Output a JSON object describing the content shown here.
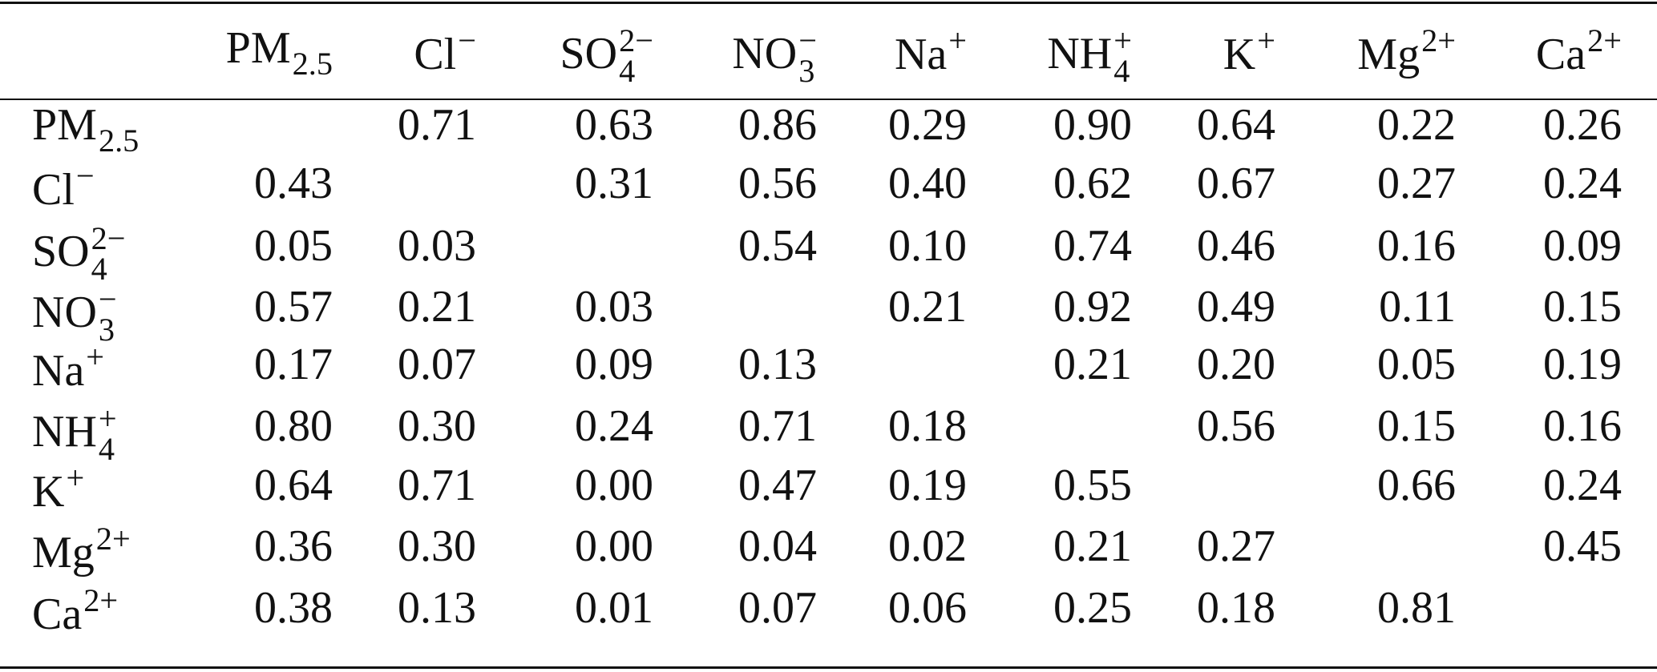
{
  "table": {
    "columns": [
      {
        "base": "PM",
        "sub": "2.5"
      },
      {
        "base": "Cl",
        "sup": "−"
      },
      {
        "base": "SO",
        "sub": "4",
        "sup": "2−"
      },
      {
        "base": "NO",
        "sub": "3",
        "sup": "−"
      },
      {
        "base": "Na",
        "sup": "+"
      },
      {
        "base": "NH",
        "sub": "4",
        "sup": "+"
      },
      {
        "base": "K",
        "sup": "+"
      },
      {
        "base": "Mg",
        "sup": "2+"
      },
      {
        "base": "Ca",
        "sup": "2+"
      }
    ],
    "rows": [
      {
        "label": {
          "base": "PM",
          "sub": "2.5"
        },
        "cells": [
          null,
          "0.71",
          "0.63",
          "0.86",
          "0.29",
          "0.90",
          "0.64",
          "0.22",
          "0.26"
        ]
      },
      {
        "label": {
          "base": "Cl",
          "sup": "−"
        },
        "cells": [
          "0.43",
          null,
          "0.31",
          "0.56",
          "0.40",
          "0.62",
          "0.67",
          "0.27",
          "0.24"
        ]
      },
      {
        "label": {
          "base": "SO",
          "sub": "4",
          "sup": "2−"
        },
        "cells": [
          "0.05",
          "0.03",
          null,
          "0.54",
          "0.10",
          "0.74",
          "0.46",
          "0.16",
          "0.09"
        ]
      },
      {
        "label": {
          "base": "NO",
          "sub": "3",
          "sup": "−"
        },
        "cells": [
          "0.57",
          "0.21",
          "0.03",
          null,
          "0.21",
          "0.92",
          "0.49",
          "0.11",
          "0.15"
        ]
      },
      {
        "label": {
          "base": "Na",
          "sup": "+"
        },
        "cells": [
          "0.17",
          "0.07",
          "0.09",
          "0.13",
          null,
          "0.21",
          "0.20",
          "0.05",
          "0.19"
        ]
      },
      {
        "label": {
          "base": "NH",
          "sub": "4",
          "sup": "+"
        },
        "cells": [
          "0.80",
          "0.30",
          "0.24",
          "0.71",
          "0.18",
          null,
          "0.56",
          "0.15",
          "0.16"
        ]
      },
      {
        "label": {
          "base": "K",
          "sup": "+"
        },
        "cells": [
          "0.64",
          "0.71",
          "0.00",
          "0.47",
          "0.19",
          "0.55",
          null,
          "0.66",
          "0.24"
        ]
      },
      {
        "label": {
          "base": "Mg",
          "sup": "2+"
        },
        "cells": [
          "0.36",
          "0.30",
          "0.00",
          "0.04",
          "0.02",
          "0.21",
          "0.27",
          null,
          "0.45"
        ]
      },
      {
        "label": {
          "base": "Ca",
          "sup": "2+"
        },
        "cells": [
          "0.38",
          "0.13",
          "0.01",
          "0.07",
          "0.06",
          "0.25",
          "0.18",
          "0.81",
          null
        ]
      }
    ]
  }
}
